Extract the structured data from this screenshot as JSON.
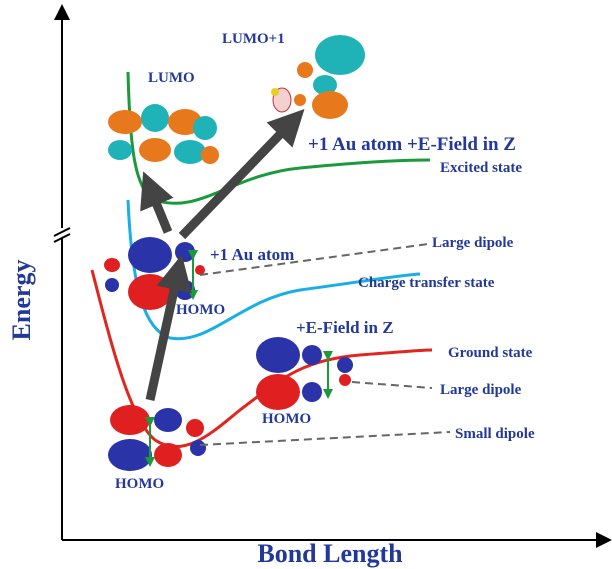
{
  "axes": {
    "y_label": "Energy",
    "x_label": "Bond Length"
  },
  "curves": {
    "excited": "Excited state",
    "charge_transfer": "Charge transfer state",
    "ground": "Ground state"
  },
  "orbitals": {
    "lumo": "LUMO",
    "lumo_plus_1": "LUMO+1",
    "homo_ct": "HOMO",
    "homo_field": "HOMO",
    "homo_ground": "HOMO"
  },
  "annotations": {
    "au_field": "+1 Au atom +E-Field in Z",
    "au": "+1 Au atom",
    "field": "+E-Field in Z",
    "large_dipole_ct": "Large dipole",
    "large_dipole_field": "Large dipole",
    "small_dipole": "Small dipole"
  }
}
